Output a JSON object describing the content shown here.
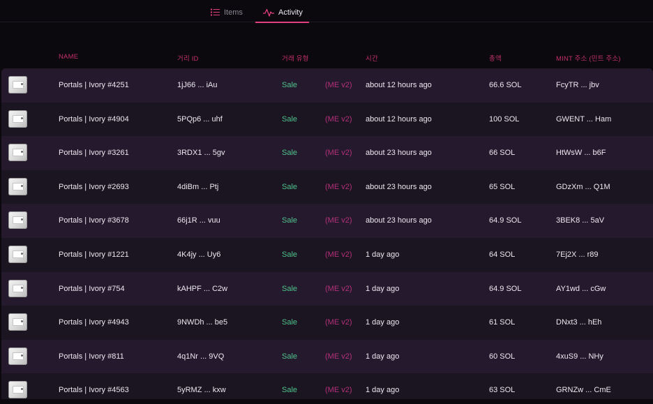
{
  "tabs": {
    "items_label": "Items",
    "activity_label": "Activity"
  },
  "table": {
    "headers": {
      "name": "NAME",
      "tx_id": "거리 ID",
      "tx_type": "거래 유형",
      "time": "시간",
      "amount": "총액",
      "mint": "MINT 주소 (민트 주소)"
    },
    "rows": [
      {
        "name": "Portals | Ivory #4251",
        "tx": "1jJ66 ... iAu",
        "type": "Sale",
        "market": "(ME v2)",
        "time": "about 12 hours ago",
        "amount": "66.6 SOL",
        "mint": "FcyTR ... jbv"
      },
      {
        "name": "Portals | Ivory #4904",
        "tx": "5PQp6 ... uhf",
        "type": "Sale",
        "market": "(ME v2)",
        "time": "about 12 hours ago",
        "amount": "100 SOL",
        "mint": "GWENT ... Ham"
      },
      {
        "name": "Portals | Ivory #3261",
        "tx": "3RDX1 ... 5gv",
        "type": "Sale",
        "market": "(ME v2)",
        "time": "about 23 hours ago",
        "amount": "66 SOL",
        "mint": "HtWsW ... b6F"
      },
      {
        "name": "Portals | Ivory #2693",
        "tx": "4diBm ... Ptj",
        "type": "Sale",
        "market": "(ME v2)",
        "time": "about 23 hours ago",
        "amount": "65 SOL",
        "mint": "GDzXm ... Q1M"
      },
      {
        "name": "Portals | Ivory #3678",
        "tx": "66j1R ... vuu",
        "type": "Sale",
        "market": "(ME v2)",
        "time": "about 23 hours ago",
        "amount": "64.9 SOL",
        "mint": "3BEK8 ... 5aV"
      },
      {
        "name": "Portals | Ivory #1221",
        "tx": "4K4jy ... Uy6",
        "type": "Sale",
        "market": "(ME v2)",
        "time": "1 day ago",
        "amount": "64 SOL",
        "mint": "7Ej2X ... r89"
      },
      {
        "name": "Portals | Ivory #754",
        "tx": "kAHPF ... C2w",
        "type": "Sale",
        "market": "(ME v2)",
        "time": "1 day ago",
        "amount": "64.9 SOL",
        "mint": "AY1wd ... cGw"
      },
      {
        "name": "Portals | Ivory #4943",
        "tx": "9NWDh ... be5",
        "type": "Sale",
        "market": "(ME v2)",
        "time": "1 day ago",
        "amount": "61 SOL",
        "mint": "DNxt3 ... hEh"
      },
      {
        "name": "Portals | Ivory #811",
        "tx": "4q1Nr ... 9VQ",
        "type": "Sale",
        "market": "(ME v2)",
        "time": "1 day ago",
        "amount": "60 SOL",
        "mint": "4xuS9 ... NHy"
      },
      {
        "name": "Portals | Ivory #4563",
        "tx": "5yRMZ ... kxw",
        "type": "Sale",
        "market": "(ME v2)",
        "time": "1 day ago",
        "amount": "63 SOL",
        "mint": "GRNZw ... CmE"
      }
    ]
  },
  "colors": {
    "accent": "#e0407f",
    "sale": "#4fc28a",
    "header_text": "#c2306d"
  },
  "icons": {
    "items_tab": "list-icon",
    "activity_tab": "pulse-icon",
    "row_thumb": "nft-thumbnail"
  }
}
